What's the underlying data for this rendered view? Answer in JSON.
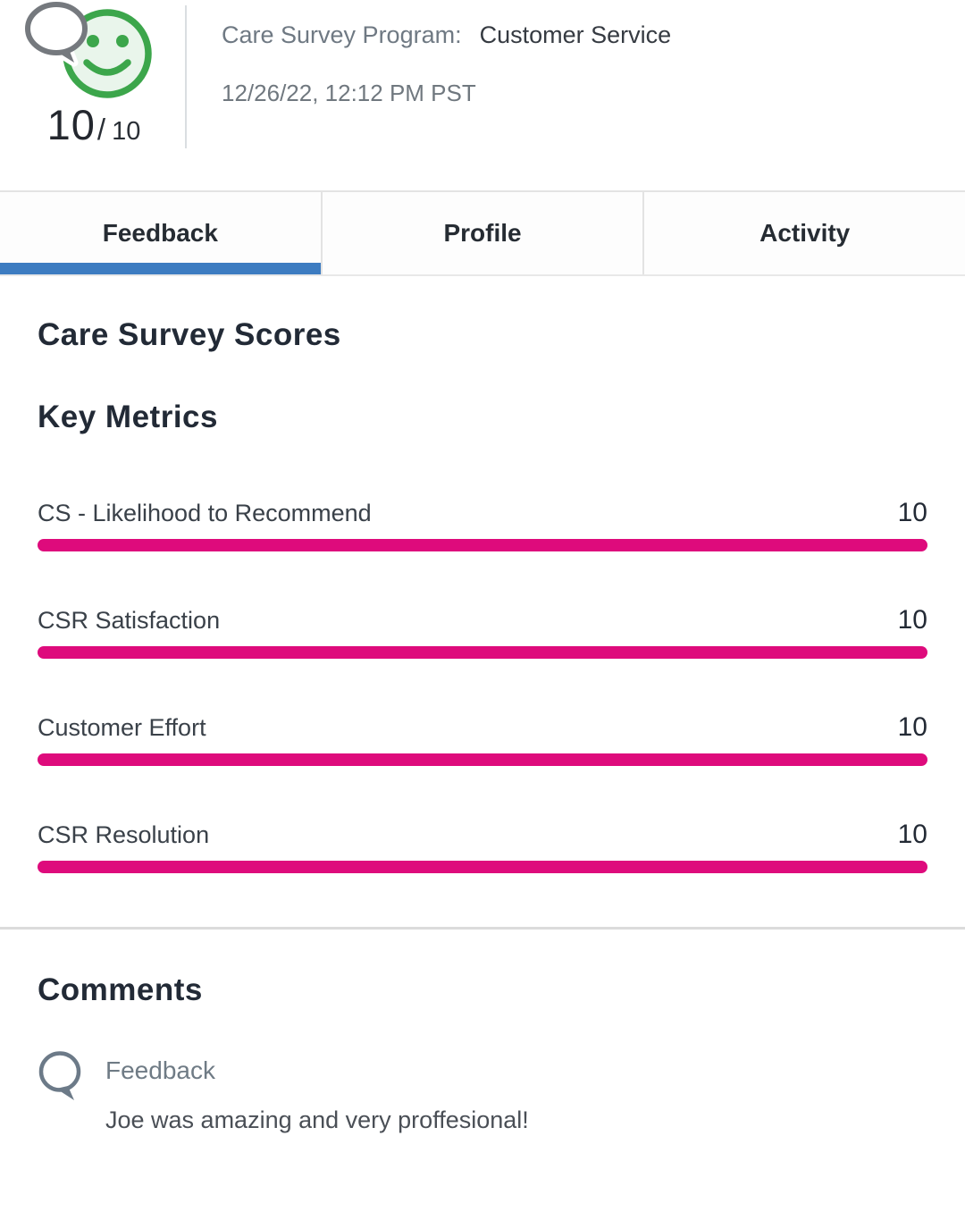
{
  "header": {
    "score": "10",
    "score_separator": "/",
    "score_max": "10",
    "program_label": "Care Survey Program:",
    "program_value": "Customer Service",
    "timestamp": "12/26/22, 12:12 PM PST"
  },
  "tabs": [
    {
      "label": "Feedback",
      "active": true
    },
    {
      "label": "Profile",
      "active": false
    },
    {
      "label": "Activity",
      "active": false
    }
  ],
  "scores_section": {
    "title": "Care Survey Scores",
    "subtitle": "Key Metrics",
    "metrics": [
      {
        "label": "CS - Likelihood to Recommend",
        "value": "10",
        "bar_percent": 100
      },
      {
        "label": "CSR Satisfaction",
        "value": "10",
        "bar_percent": 100
      },
      {
        "label": "Customer Effort",
        "value": "10",
        "bar_percent": 100
      },
      {
        "label": "CSR Resolution",
        "value": "10",
        "bar_percent": 100
      }
    ]
  },
  "comments_section": {
    "title": "Comments",
    "items": [
      {
        "label": "Feedback",
        "text": "Joe was amazing and very proffesional!"
      }
    ]
  },
  "icons": {
    "header_icon": "smiley-feedback-icon",
    "comment_icon": "speech-bubble-icon"
  },
  "colors": {
    "accent_blue": "#3D7CC1",
    "bar_pink": "#DE0B7C",
    "smiley_green": "#3CA64B",
    "smiley_fill": "#E9F5EB",
    "header_bubble_gray": "#75797E",
    "comment_bubble_gray": "#6C7A88"
  }
}
